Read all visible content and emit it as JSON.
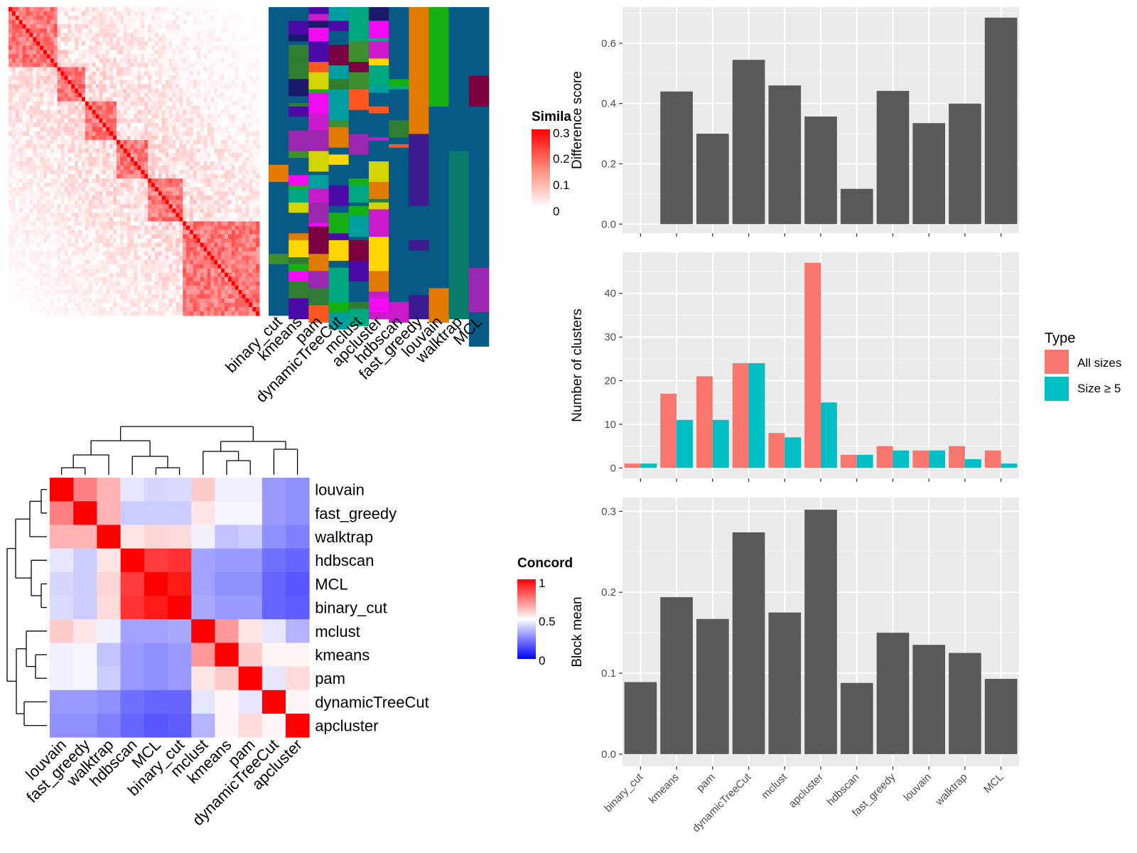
{
  "chart_data": [
    {
      "type": "heatmap",
      "panel": "similarity-matrix",
      "legend_title": "Simila",
      "legend_ticks": [
        "0.3",
        "0.2",
        "0.1",
        "0"
      ],
      "colors": {
        "low": "#ffffff",
        "high": "#ff0000"
      },
      "methods": [
        "binary_cut",
        "kmeans",
        "pam",
        "dynamicTreeCut",
        "mclust",
        "apcluster",
        "hdbscan",
        "fast_greedy",
        "louvain",
        "walktrap",
        "MCL"
      ]
    },
    {
      "type": "heatmap",
      "panel": "concordance",
      "legend_title": "Concord",
      "legend_ticks": [
        "1",
        "0.5",
        "0"
      ],
      "colors": {
        "low": "#0000ff",
        "mid": "#ffffff",
        "high": "#ff0000"
      },
      "labels": [
        "louvain",
        "fast_greedy",
        "walktrap",
        "hdbscan",
        "MCL",
        "binary_cut",
        "mclust",
        "kmeans",
        "pam",
        "dynamicTreeCut",
        "apcluster"
      ],
      "values": [
        [
          1.0,
          0.75,
          0.65,
          0.45,
          0.42,
          0.43,
          0.6,
          0.47,
          0.47,
          0.3,
          0.28
        ],
        [
          0.75,
          1.0,
          0.65,
          0.4,
          0.4,
          0.4,
          0.55,
          0.48,
          0.48,
          0.3,
          0.28
        ],
        [
          0.65,
          0.65,
          1.0,
          0.55,
          0.58,
          0.57,
          0.47,
          0.38,
          0.4,
          0.28,
          0.25
        ],
        [
          0.45,
          0.4,
          0.55,
          1.0,
          0.88,
          0.9,
          0.32,
          0.3,
          0.3,
          0.22,
          0.2
        ],
        [
          0.42,
          0.4,
          0.58,
          0.88,
          1.0,
          0.95,
          0.32,
          0.28,
          0.28,
          0.2,
          0.17
        ],
        [
          0.43,
          0.4,
          0.57,
          0.9,
          0.95,
          1.0,
          0.33,
          0.3,
          0.3,
          0.2,
          0.18
        ],
        [
          0.6,
          0.55,
          0.47,
          0.32,
          0.32,
          0.33,
          1.0,
          0.7,
          0.55,
          0.45,
          0.35
        ],
        [
          0.47,
          0.48,
          0.38,
          0.3,
          0.28,
          0.3,
          0.7,
          1.0,
          0.6,
          0.52,
          0.52
        ],
        [
          0.47,
          0.48,
          0.4,
          0.3,
          0.28,
          0.3,
          0.55,
          0.6,
          1.0,
          0.45,
          0.57
        ],
        [
          0.3,
          0.3,
          0.28,
          0.22,
          0.2,
          0.2,
          0.45,
          0.52,
          0.45,
          1.0,
          0.52
        ],
        [
          0.28,
          0.28,
          0.25,
          0.2,
          0.17,
          0.18,
          0.35,
          0.52,
          0.57,
          0.52,
          1.0
        ]
      ]
    },
    {
      "type": "bar",
      "panel": "difference-score",
      "categories": [
        "binary_cut",
        "kmeans",
        "pam",
        "dynamicTreeCut",
        "mclust",
        "apcluster",
        "hdbscan",
        "fast_greedy",
        "louvain",
        "walktrap",
        "MCL"
      ],
      "values": [
        0.0,
        0.44,
        0.3,
        0.545,
        0.46,
        0.357,
        0.117,
        0.442,
        0.335,
        0.4,
        0.685
      ],
      "ylabel": "Difference score",
      "ylim": [
        -0.03,
        0.72
      ],
      "yticks": [
        0.0,
        0.2,
        0.4,
        0.6
      ],
      "ytick_labels": [
        "0.0",
        "0.2",
        "0.4",
        "0.6"
      ],
      "color": "#595959"
    },
    {
      "type": "bar",
      "panel": "number-of-clusters",
      "categories": [
        "binary_cut",
        "kmeans",
        "pam",
        "dynamicTreeCut",
        "mclust",
        "apcluster",
        "hdbscan",
        "fast_greedy",
        "louvain",
        "walktrap",
        "MCL"
      ],
      "series": [
        {
          "name": "All sizes",
          "values": [
            1,
            17,
            21,
            24,
            8,
            47,
            3,
            5,
            4,
            5,
            4
          ],
          "color": "#F8766D"
        },
        {
          "name": "Size ≥ 5",
          "values": [
            1,
            11,
            11,
            24,
            7,
            15,
            3,
            4,
            4,
            2,
            1
          ],
          "color": "#00BFC4"
        }
      ],
      "ylabel": "Number of clusters",
      "ylim": [
        -2.4,
        49.4
      ],
      "yticks": [
        0,
        10,
        20,
        30,
        40
      ],
      "ytick_labels": [
        "0",
        "10",
        "20",
        "30",
        "40"
      ],
      "legend_title": "Type"
    },
    {
      "type": "bar",
      "panel": "block-mean",
      "categories": [
        "binary_cut",
        "kmeans",
        "pam",
        "dynamicTreeCut",
        "mclust",
        "apcluster",
        "hdbscan",
        "fast_greedy",
        "louvain",
        "walktrap",
        "MCL"
      ],
      "values": [
        0.089,
        0.194,
        0.167,
        0.274,
        0.175,
        0.302,
        0.088,
        0.15,
        0.135,
        0.125,
        0.093
      ],
      "ylabel": "Block mean",
      "ylim": [
        -0.015,
        0.317
      ],
      "yticks": [
        0.0,
        0.1,
        0.2,
        0.3
      ],
      "ytick_labels": [
        "0.0",
        "0.1",
        "0.2",
        "0.3"
      ],
      "color": "#595959"
    }
  ]
}
